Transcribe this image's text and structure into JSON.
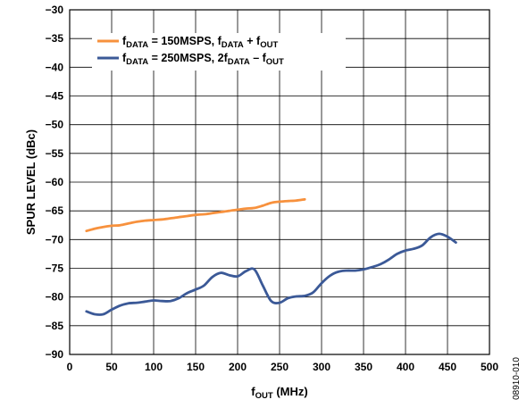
{
  "chart_data": {
    "type": "line",
    "title": "",
    "xlabel": {
      "main": "f",
      "sub": "OUT",
      "rest": " (MHz)"
    },
    "ylabel": "SPUR LEVEL (dBc)",
    "xlim": [
      0,
      500
    ],
    "ylim": [
      -90,
      -30
    ],
    "xticks": [
      0,
      50,
      100,
      150,
      200,
      250,
      300,
      350,
      400,
      450,
      500
    ],
    "yticks": [
      -30,
      -35,
      -40,
      -45,
      -50,
      -55,
      -60,
      -65,
      -70,
      -75,
      -80,
      -85,
      -90
    ],
    "grid": true,
    "legend_position": "top-left",
    "series": [
      {
        "color": "#F7913D",
        "legend": [
          {
            "t": "f"
          },
          {
            "t": "DATA",
            "sub": true
          },
          {
            "t": " = 150MSPS, f"
          },
          {
            "t": "DATA",
            "sub": true
          },
          {
            "t": " + f"
          },
          {
            "t": "OUT",
            "sub": true
          }
        ],
        "x": [
          20,
          30,
          40,
          50,
          60,
          70,
          80,
          90,
          100,
          110,
          120,
          130,
          140,
          150,
          160,
          170,
          180,
          190,
          200,
          210,
          220,
          230,
          240,
          250,
          260,
          270,
          280
        ],
        "y": [
          -68.5,
          -68.1,
          -67.8,
          -67.6,
          -67.5,
          -67.2,
          -66.9,
          -66.7,
          -66.6,
          -66.5,
          -66.3,
          -66.1,
          -65.9,
          -65.7,
          -65.6,
          -65.4,
          -65.2,
          -65.0,
          -64.8,
          -64.6,
          -64.5,
          -64.1,
          -63.6,
          -63.4,
          -63.3,
          -63.2,
          -63.0
        ]
      },
      {
        "color": "#3B5997",
        "legend": [
          {
            "t": "f"
          },
          {
            "t": "DATA",
            "sub": true
          },
          {
            "t": " = 250MSPS, 2f"
          },
          {
            "t": "DATA",
            "sub": true
          },
          {
            "t": " – f"
          },
          {
            "t": "OUT",
            "sub": true
          }
        ],
        "x": [
          20,
          30,
          40,
          50,
          60,
          70,
          80,
          90,
          100,
          110,
          120,
          130,
          140,
          150,
          160,
          170,
          180,
          190,
          200,
          210,
          220,
          230,
          240,
          250,
          260,
          270,
          280,
          290,
          300,
          310,
          320,
          330,
          340,
          350,
          360,
          370,
          380,
          390,
          400,
          410,
          420,
          430,
          440,
          450,
          460
        ],
        "y": [
          -82.5,
          -83.0,
          -83.0,
          -82.2,
          -81.5,
          -81.1,
          -81.0,
          -80.8,
          -80.6,
          -80.7,
          -80.7,
          -80.2,
          -79.3,
          -78.7,
          -78.0,
          -76.5,
          -75.8,
          -76.2,
          -76.4,
          -75.5,
          -75.2,
          -78.0,
          -80.7,
          -81.0,
          -80.2,
          -79.9,
          -79.8,
          -79.2,
          -77.6,
          -76.3,
          -75.6,
          -75.4,
          -75.4,
          -75.2,
          -74.8,
          -74.3,
          -73.5,
          -72.5,
          -71.9,
          -71.6,
          -71.0,
          -69.6,
          -69.0,
          -69.5,
          -70.5
        ]
      }
    ]
  },
  "figure_id": "08910-010"
}
